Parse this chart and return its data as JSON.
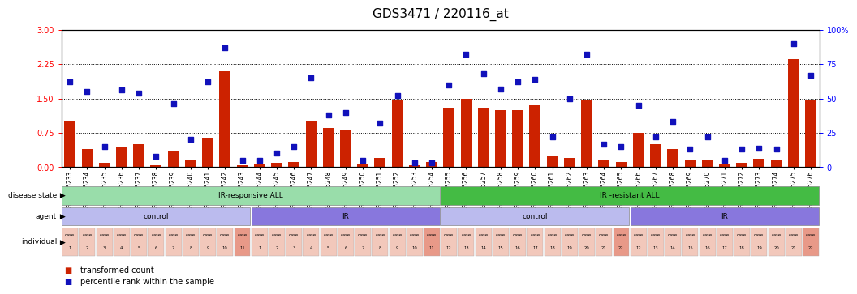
{
  "title": "GDS3471 / 220116_at",
  "samples": [
    "GSM335233",
    "GSM335234",
    "GSM335235",
    "GSM335236",
    "GSM335237",
    "GSM335238",
    "GSM335239",
    "GSM335240",
    "GSM335241",
    "GSM335242",
    "GSM335243",
    "GSM335244",
    "GSM335245",
    "GSM335246",
    "GSM335247",
    "GSM335248",
    "GSM335249",
    "GSM335250",
    "GSM335251",
    "GSM335252",
    "GSM335253",
    "GSM335254",
    "GSM335255",
    "GSM335256",
    "GSM335257",
    "GSM335258",
    "GSM335259",
    "GSM335260",
    "GSM335261",
    "GSM335262",
    "GSM335263",
    "GSM335264",
    "GSM335265",
    "GSM335266",
    "GSM335267",
    "GSM335268",
    "GSM335269",
    "GSM335270",
    "GSM335271",
    "GSM335272",
    "GSM335273",
    "GSM335274",
    "GSM335275",
    "GSM335276"
  ],
  "bar_values": [
    1.0,
    0.4,
    0.1,
    0.45,
    0.5,
    0.05,
    0.35,
    0.17,
    0.65,
    2.1,
    0.05,
    0.07,
    0.1,
    0.12,
    1.0,
    0.85,
    0.82,
    0.07,
    0.2,
    1.45,
    0.05,
    0.12,
    1.3,
    1.5,
    1.3,
    1.25,
    1.25,
    1.35,
    0.25,
    0.2,
    1.48,
    0.17,
    0.12,
    0.75,
    0.5,
    0.4,
    0.15,
    0.15,
    0.08,
    0.1,
    0.18,
    0.15,
    2.35,
    1.48
  ],
  "dot_values": [
    62,
    55,
    15,
    56,
    54,
    8,
    46,
    20,
    62,
    87,
    5,
    5,
    10,
    15,
    65,
    38,
    40,
    5,
    32,
    52,
    3,
    3,
    60,
    82,
    68,
    57,
    62,
    64,
    22,
    50,
    82,
    17,
    15,
    45,
    22,
    33,
    13,
    22,
    5,
    13,
    14,
    13,
    90,
    67
  ],
  "ylim_left": [
    0,
    3
  ],
  "ylim_right": [
    0,
    100
  ],
  "yticks_left": [
    0,
    0.75,
    1.5,
    2.25,
    3
  ],
  "yticks_right": [
    0,
    25,
    50,
    75,
    100
  ],
  "bar_color": "#cc2200",
  "dot_color": "#1111bb",
  "disease_state_groups": [
    {
      "label": "IR-responsive ALL",
      "start": 0,
      "end": 21,
      "color": "#99ddaa"
    },
    {
      "label": "IR -resistant ALL",
      "start": 22,
      "end": 43,
      "color": "#44bb44"
    }
  ],
  "agent_groups": [
    {
      "label": "control",
      "start": 0,
      "end": 10,
      "color": "#bbbbee"
    },
    {
      "label": "IR",
      "start": 11,
      "end": 21,
      "color": "#8877dd"
    },
    {
      "label": "control",
      "start": 22,
      "end": 32,
      "color": "#bbbbee"
    },
    {
      "label": "IR",
      "start": 33,
      "end": 43,
      "color": "#8877dd"
    }
  ],
  "individual_colors": {
    "light": "#f2c8bb",
    "dark": "#e89988"
  },
  "individual_data": [
    [
      0,
      10,
      "1",
      "2",
      "3",
      "4",
      "5",
      "6",
      "7",
      "8",
      "9",
      "10",
      "11"
    ],
    [
      11,
      21,
      "1",
      "2",
      "3",
      "4",
      "5",
      "6",
      "7",
      "8",
      "9",
      "10",
      "11"
    ],
    [
      22,
      32,
      "12",
      "13",
      "14",
      "15",
      "16",
      "17",
      "18",
      "19",
      "20",
      "21",
      "22"
    ],
    [
      33,
      43,
      "12",
      "13",
      "14",
      "15",
      "16",
      "17",
      "18",
      "19",
      "20",
      "21",
      "22"
    ]
  ],
  "row_labels": [
    "disease state",
    "agent",
    "individual"
  ],
  "legend_bar_label": "transformed count",
  "legend_dot_label": "percentile rank within the sample",
  "title_fontsize": 11,
  "axis_label_fontsize": 7,
  "tick_fontsize": 5.5,
  "ann_fontsize": 6.5,
  "ind_fontsize": 4.5
}
